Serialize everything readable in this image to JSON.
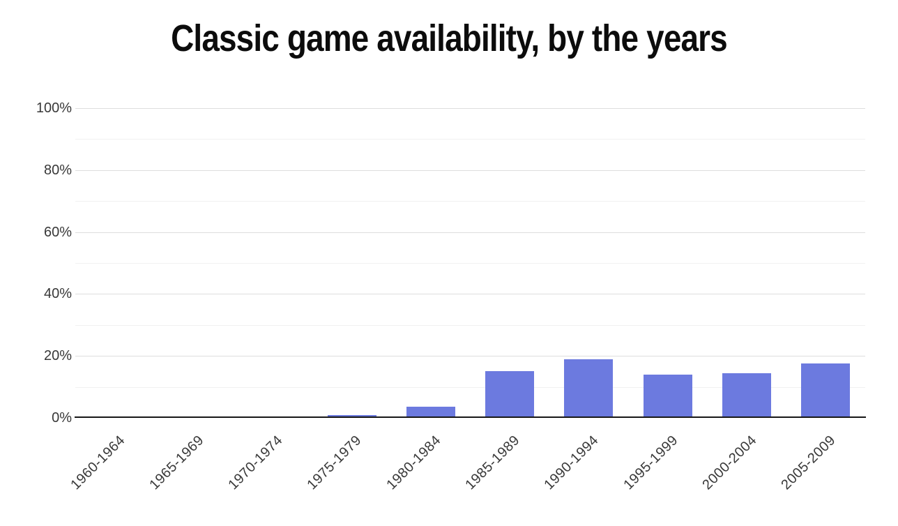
{
  "chart_data": {
    "type": "bar",
    "title": "Classic game availability, by the years",
    "categories": [
      "1960-1964",
      "1965-1969",
      "1970-1974",
      "1975-1979",
      "1980-1984",
      "1985-1989",
      "1990-1994",
      "1995-1999",
      "2000-2004",
      "2005-2009"
    ],
    "values": [
      0,
      0,
      0,
      1,
      3.5,
      15,
      19,
      14,
      14.5,
      17.5
    ],
    "value_unit": "%",
    "xlabel": "",
    "ylabel": "",
    "ylim": [
      0,
      100
    ],
    "y_ticks": [
      0,
      20,
      40,
      60,
      80,
      100
    ],
    "y_tick_labels": [
      "0%",
      "20%",
      "40%",
      "60%",
      "80%",
      "100%"
    ],
    "y_minor_ticks": [
      10,
      30,
      50,
      70,
      90
    ],
    "grid": true,
    "legend": "none",
    "colors": {
      "bar": "#6C7ADF",
      "major_gridline": "#dedede",
      "minor_gridline": "#f1f1f1",
      "axis_line": "#161616",
      "title_text": "#0c0c0c",
      "tick_text": "#383838",
      "background": "#ffffff"
    }
  }
}
